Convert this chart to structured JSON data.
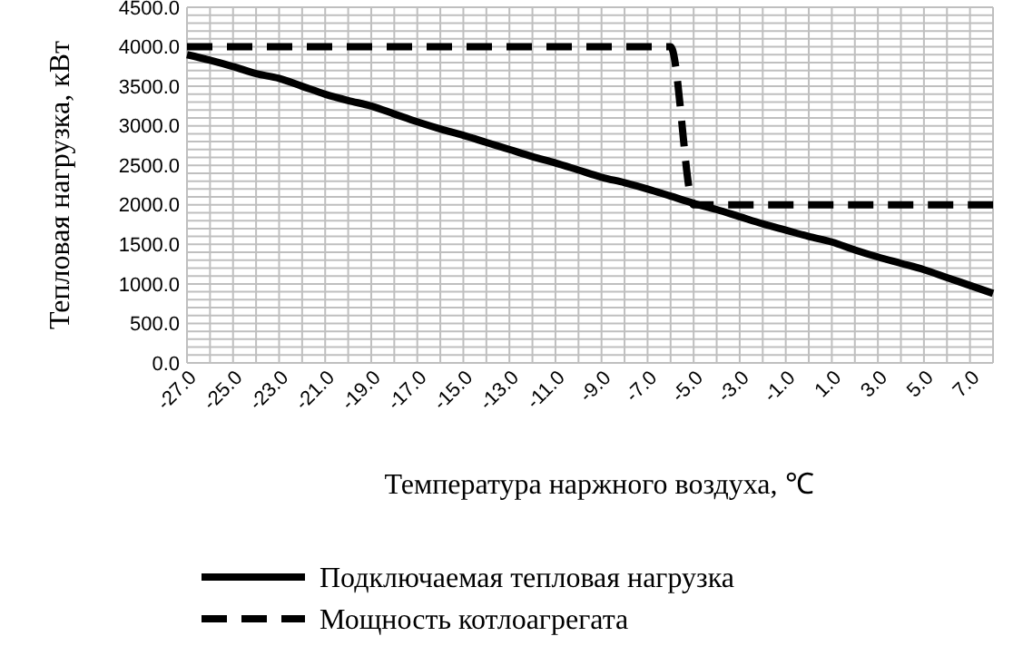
{
  "chart_data": {
    "type": "line",
    "xlabel": "Температура наржного воздуха, ℃",
    "ylabel": "Тепловая нагрузка, кВт",
    "x": [
      -27,
      -26,
      -25,
      -24,
      -23,
      -22,
      -21,
      -20,
      -19,
      -18,
      -17,
      -16,
      -15,
      -14,
      -13,
      -12,
      -11,
      -10,
      -9,
      -8,
      -7,
      -6,
      -5,
      -4,
      -3,
      -2,
      -1,
      0,
      1,
      2,
      3,
      4,
      5,
      6,
      7,
      8
    ],
    "series": [
      {
        "name": "Подключаемая тепловая нагрузка",
        "color": "#000000",
        "line_style": "solid",
        "values": [
          3900,
          3830,
          3750,
          3660,
          3600,
          3500,
          3400,
          3320,
          3250,
          3150,
          3050,
          2960,
          2880,
          2790,
          2700,
          2610,
          2530,
          2440,
          2350,
          2280,
          2200,
          2110,
          2020,
          1940,
          1850,
          1760,
          1680,
          1600,
          1530,
          1430,
          1340,
          1260,
          1180,
          1080,
          980,
          880
        ]
      },
      {
        "name": "Мощность котлоагрегата",
        "color": "#000000",
        "line_style": "dashed",
        "values": [
          4000,
          4000,
          4000,
          4000,
          4000,
          4000,
          4000,
          4000,
          4000,
          4000,
          4000,
          4000,
          4000,
          4000,
          4000,
          4000,
          4000,
          4000,
          4000,
          4000,
          4000,
          4000,
          2000,
          2000,
          2000,
          2000,
          2000,
          2000,
          2000,
          2000,
          2000,
          2000,
          2000,
          2000,
          2000,
          2000
        ]
      }
    ],
    "xlim": [
      -27,
      8
    ],
    "xticks": [
      {
        "value": -27,
        "label": "-27.0"
      },
      {
        "value": -26,
        "label": null
      },
      {
        "value": -25,
        "label": "-25.0"
      },
      {
        "value": -24,
        "label": null
      },
      {
        "value": -23,
        "label": "-23.0"
      },
      {
        "value": -22,
        "label": null
      },
      {
        "value": -21,
        "label": "-21.0"
      },
      {
        "value": -20,
        "label": null
      },
      {
        "value": -19,
        "label": "-19.0"
      },
      {
        "value": -18,
        "label": null
      },
      {
        "value": -17,
        "label": "-17.0"
      },
      {
        "value": -16,
        "label": null
      },
      {
        "value": -15,
        "label": "-15.0"
      },
      {
        "value": -14,
        "label": null
      },
      {
        "value": -13,
        "label": "-13.0"
      },
      {
        "value": -12,
        "label": null
      },
      {
        "value": -11,
        "label": "-11.0"
      },
      {
        "value": -10,
        "label": null
      },
      {
        "value": -9,
        "label": "-9.0"
      },
      {
        "value": -8,
        "label": null
      },
      {
        "value": -7,
        "label": "-7.0"
      },
      {
        "value": -6,
        "label": null
      },
      {
        "value": -5,
        "label": "-5.0"
      },
      {
        "value": -4,
        "label": null
      },
      {
        "value": -3,
        "label": "-3.0"
      },
      {
        "value": -2,
        "label": null
      },
      {
        "value": -1,
        "label": "-1.0"
      },
      {
        "value": 0,
        "label": null
      },
      {
        "value": 1,
        "label": "1.0"
      },
      {
        "value": 2,
        "label": null
      },
      {
        "value": 3,
        "label": "3.0"
      },
      {
        "value": 4,
        "label": null
      },
      {
        "value": 5,
        "label": "5.0"
      },
      {
        "value": 6,
        "label": null
      },
      {
        "value": 7,
        "label": "7.0"
      },
      {
        "value": 8,
        "label": null
      }
    ],
    "ylim": [
      0,
      4500
    ],
    "yticks": [
      {
        "value": 0,
        "label": "0.0"
      },
      {
        "value": 100,
        "label": null
      },
      {
        "value": 200,
        "label": null
      },
      {
        "value": 300,
        "label": null
      },
      {
        "value": 400,
        "label": null
      },
      {
        "value": 500,
        "label": "500.0"
      },
      {
        "value": 600,
        "label": null
      },
      {
        "value": 700,
        "label": null
      },
      {
        "value": 800,
        "label": null
      },
      {
        "value": 900,
        "label": null
      },
      {
        "value": 1000,
        "label": "1000.0"
      },
      {
        "value": 1100,
        "label": null
      },
      {
        "value": 1200,
        "label": null
      },
      {
        "value": 1300,
        "label": null
      },
      {
        "value": 1400,
        "label": null
      },
      {
        "value": 1500,
        "label": "1500.0"
      },
      {
        "value": 1600,
        "label": null
      },
      {
        "value": 1700,
        "label": null
      },
      {
        "value": 1800,
        "label": null
      },
      {
        "value": 1900,
        "label": null
      },
      {
        "value": 2000,
        "label": "2000.0"
      },
      {
        "value": 2100,
        "label": null
      },
      {
        "value": 2200,
        "label": null
      },
      {
        "value": 2300,
        "label": null
      },
      {
        "value": 2400,
        "label": null
      },
      {
        "value": 2500,
        "label": "2500.0"
      },
      {
        "value": 2600,
        "label": null
      },
      {
        "value": 2700,
        "label": null
      },
      {
        "value": 2800,
        "label": null
      },
      {
        "value": 2900,
        "label": null
      },
      {
        "value": 3000,
        "label": "3000.0"
      },
      {
        "value": 3100,
        "label": null
      },
      {
        "value": 3200,
        "label": null
      },
      {
        "value": 3300,
        "label": null
      },
      {
        "value": 3400,
        "label": null
      },
      {
        "value": 3500,
        "label": "3500.0"
      },
      {
        "value": 3600,
        "label": null
      },
      {
        "value": 3700,
        "label": null
      },
      {
        "value": 3800,
        "label": null
      },
      {
        "value": 3900,
        "label": null
      },
      {
        "value": 4000,
        "label": "4000.0"
      },
      {
        "value": 4100,
        "label": null
      },
      {
        "value": 4200,
        "label": null
      },
      {
        "value": 4300,
        "label": null
      },
      {
        "value": 4400,
        "label": null
      },
      {
        "value": 4500,
        "label": "4500.0"
      }
    ],
    "grid": true,
    "legend": "bottom",
    "marker": "none"
  }
}
